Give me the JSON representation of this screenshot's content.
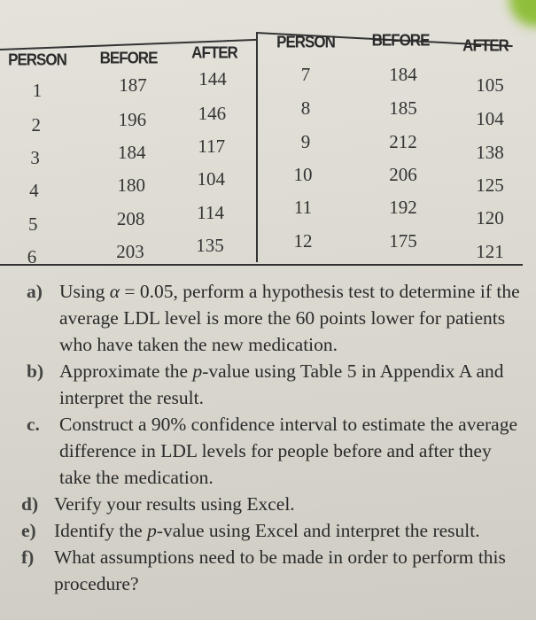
{
  "table": {
    "headers": [
      "PERSON",
      "BEFORE",
      "AFTER",
      "PERSON",
      "BEFORE",
      "AFTER"
    ],
    "left_rows": [
      {
        "person": "1",
        "before": "187",
        "after": "144"
      },
      {
        "person": "2",
        "before": "196",
        "after": "146"
      },
      {
        "person": "3",
        "before": "184",
        "after": "117"
      },
      {
        "person": "4",
        "before": "180",
        "after": "104"
      },
      {
        "person": "5",
        "before": "208",
        "after": "114"
      },
      {
        "person": "6",
        "before": "203",
        "after": "135"
      }
    ],
    "right_rows": [
      {
        "person": "7",
        "before": "184",
        "after": "105"
      },
      {
        "person": "8",
        "before": "185",
        "after": "104"
      },
      {
        "person": "9",
        "before": "212",
        "after": "138"
      },
      {
        "person": "10",
        "before": "206",
        "after": "125"
      },
      {
        "person": "11",
        "before": "192",
        "after": "120"
      },
      {
        "person": "12",
        "before": "175",
        "after": "121"
      }
    ]
  },
  "questions": [
    {
      "label": "a)",
      "text": "Using α = 0.05, perform a hypothesis test to determine if the average LDL level is more the 60 points lower for patients who have taken the new medication."
    },
    {
      "label": "b)",
      "text": "Approximate the p-value using Table 5 in Appendix A and interpret the result."
    },
    {
      "label": "c.",
      "text": "Construct a 90% confidence interval to estimate the average difference in LDL levels for people before and after they take the medication."
    },
    {
      "label": "d)",
      "text": "Verify your results using Excel."
    },
    {
      "label": "e)",
      "text": "Identify the p-value using Excel and interpret the result."
    },
    {
      "label": "f)",
      "text": "What assumptions need to be made in order to perform this procedure?"
    }
  ]
}
